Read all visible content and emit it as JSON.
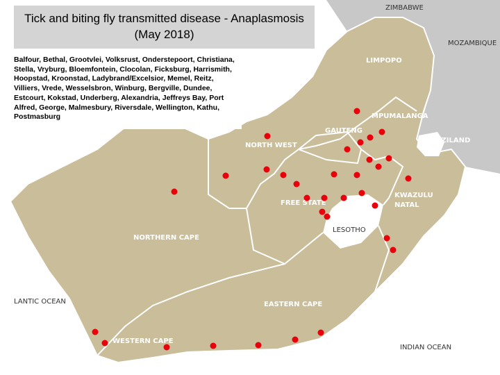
{
  "title": "Tick and biting fly transmitted disease - Anaplasmosis (May 2018)",
  "places": "Balfour, Bethal, Grootvlei, Volksrust, Onderstepoort, Christiana, Stella, Vryburg, Bloemfontein, Clocolan, Ficksburg, Harrismith, Hoopstad, Kroonstad, Ladybrand/Excelsior, Memel, Reitz, Villiers, Vrede, Wesselsbron, Winburg, Bergville, Dundee, Estcourt, Kokstad, Underberg, Alexandria, Jeffreys Bay, Port Alfred, George, Malmesbury, Riversdale, Wellington, Kathu, Postmasburg",
  "labels": {
    "zimbabwe": "ZIMBABWE",
    "mozambique": "MOZAMBIQUE",
    "limpopo": "LIMPOPO",
    "mpumalanga": "MPUMALANGA",
    "gauteng": "GAUTENG",
    "north_west": "NORTH WEST",
    "swaziland": "SWAZILAND",
    "kwazulu": "KWAZULU",
    "natal": "NATAL",
    "free_state": "FREE STATE",
    "lesotho": "LESOTHO",
    "northern_cape": "NORTHERN CAPE",
    "atlantic": "LANTIC OCEAN",
    "eastern_cape": "EASTERN CAPE",
    "western_cape": "WESTERN CAPE",
    "indian": "INDIAN OCEAN"
  }
}
